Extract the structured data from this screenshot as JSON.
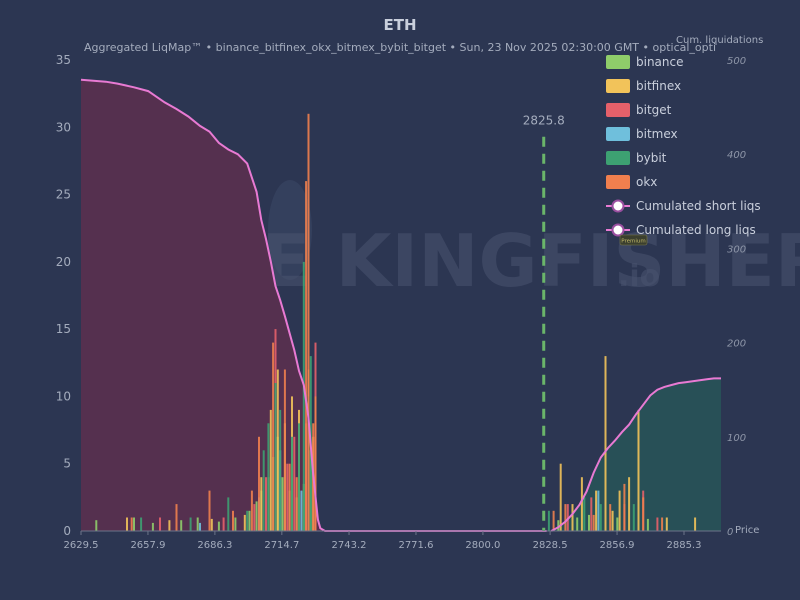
{
  "header": {
    "title": "ETH",
    "subtitle": "Aggregated LiqMap™  •  binance_bitfinex_okx_bitmex_bybit_bitget  •  Sun, 23 Nov 2025 02:30:00 GMT  •  optical_opti"
  },
  "watermark": {
    "brand": "THE KINGFISHER",
    "suffix": ".io"
  },
  "badge": "Premium",
  "colors": {
    "background": "#2c3652",
    "binance": "#8fcd6a",
    "bitfinex": "#f2c35a",
    "bitget": "#e5606a",
    "bitmex": "#6fbfdc",
    "bybit": "#3da172",
    "okx": "#f07f4e",
    "cumulative_line": "#e87ad3",
    "short_fill": "#55304f",
    "long_fill": "#285057",
    "current_price": "#6ab56a"
  },
  "chart_data": {
    "type": "bar",
    "title": "ETH",
    "xlabel": "Price",
    "ylabel": "",
    "y2label": "Cum. liquidations",
    "xlim": [
      2629.5,
      2901
    ],
    "ylim": [
      0,
      35
    ],
    "y2lim": [
      0,
      500
    ],
    "x_ticks": [
      "2629.5",
      "2657.9",
      "2686.3",
      "2714.7",
      "2743.2",
      "2771.6",
      "2800.0",
      "2828.5",
      "2856.9",
      "2885.3"
    ],
    "y_ticks": [
      "0",
      "5",
      "10",
      "15",
      "20",
      "25",
      "30",
      "35"
    ],
    "y2_ticks": [
      "0",
      "100",
      "200",
      "300",
      "400",
      "500"
    ],
    "current_price": {
      "value": 2825.8,
      "label": "2825.8"
    },
    "legend": [
      "binance",
      "bitfinex",
      "bitget",
      "bitmex",
      "bybit",
      "okx",
      "Cumulated short liqs",
      "Cumulated long liqs"
    ],
    "series": [
      {
        "name": "binance",
        "x": [
          2636,
          2652,
          2660,
          2672,
          2679,
          2688,
          2695,
          2701,
          2704,
          2706,
          2709,
          2711,
          2713,
          2715,
          2718,
          2721,
          2724,
          2727,
          2729,
          2832,
          2840,
          2845,
          2857,
          2870
        ],
        "values": [
          0.8,
          1.0,
          0.6,
          0.8,
          1.0,
          0.7,
          1.0,
          1.5,
          2.2,
          3.0,
          4.0,
          5.5,
          7.0,
          4.0,
          3.0,
          2.5,
          3.5,
          6.0,
          8.0,
          0.8,
          1.0,
          1.2,
          1.0,
          0.9
        ]
      },
      {
        "name": "bitfinex",
        "x": [
          2649,
          2667,
          2685,
          2699,
          2706,
          2710,
          2713,
          2716,
          2719,
          2722,
          2726,
          2728,
          2833,
          2838,
          2842,
          2848,
          2852,
          2855,
          2858,
          2862,
          2866,
          2878,
          2890
        ],
        "values": [
          1.0,
          0.8,
          0.9,
          1.2,
          4.0,
          9.0,
          12.0,
          8.0,
          10.0,
          9.0,
          12.0,
          7.0,
          5.0,
          2.0,
          4.0,
          3.0,
          13.0,
          1.5,
          3.0,
          4.0,
          9.0,
          1.0,
          1.0
        ]
      },
      {
        "name": "bitget",
        "x": [
          2663,
          2690,
          2703,
          2708,
          2712,
          2717,
          2720,
          2725,
          2729,
          2836,
          2846,
          2860,
          2868,
          2874
        ],
        "values": [
          1.0,
          1.0,
          2.0,
          4.0,
          15.0,
          5.0,
          7.0,
          8.0,
          14.0,
          2.0,
          2.5,
          2.0,
          3.0,
          1.0
        ]
      },
      {
        "name": "bitmex",
        "x": [
          2680,
          2705,
          2714,
          2723,
          2849
        ],
        "values": [
          0.6,
          2.5,
          6.0,
          3.0,
          3.0
        ]
      },
      {
        "name": "bybit",
        "x": [
          2655,
          2676,
          2692,
          2700,
          2707,
          2709,
          2712,
          2714,
          2719,
          2722,
          2724,
          2726,
          2727,
          2828,
          2843,
          2850,
          2864
        ],
        "values": [
          1.0,
          1.0,
          2.5,
          1.5,
          6.0,
          8.0,
          11.0,
          9.0,
          7.0,
          8.0,
          20.0,
          10.0,
          13.0,
          1.5,
          2.5,
          2.0,
          2.0
        ]
      },
      {
        "name": "okx",
        "x": [
          2651,
          2670,
          2684,
          2694,
          2702,
          2705,
          2711,
          2716,
          2718,
          2721,
          2725,
          2726,
          2728,
          2729,
          2830,
          2835,
          2847,
          2854,
          2860,
          2868,
          2876
        ],
        "values": [
          1.0,
          2.0,
          3.0,
          1.5,
          3.0,
          7.0,
          14.0,
          12.0,
          5.0,
          4.0,
          26.0,
          31.0,
          8.0,
          10.0,
          1.5,
          2.0,
          1.2,
          2.0,
          3.5,
          2.5,
          1.0
        ]
      }
    ],
    "cumulated_short_liqs": {
      "x": [
        2829,
        2832,
        2835,
        2838,
        2841,
        2844,
        2847,
        2850,
        2853,
        2856,
        2859,
        2862,
        2865,
        2868,
        2871,
        2874,
        2877,
        2880,
        2883,
        2886,
        2889,
        2892,
        2895,
        2898,
        2901
      ],
      "values": [
        0,
        4,
        10,
        18,
        28,
        42,
        62,
        78,
        88,
        96,
        105,
        113,
        124,
        134,
        144,
        150,
        153,
        155,
        157,
        158,
        159,
        160,
        161,
        162,
        162
      ]
    },
    "cumulated_long_liqs": {
      "x": [
        2629.5,
        2640,
        2645,
        2652,
        2658,
        2665,
        2670,
        2675,
        2680,
        2684,
        2688,
        2692,
        2696,
        2700,
        2704,
        2706,
        2708,
        2710,
        2712,
        2714,
        2716,
        2718,
        2720,
        2722,
        2724,
        2726,
        2728,
        2730,
        2731,
        2733,
        2827
      ],
      "values": [
        479,
        477,
        475,
        471,
        467,
        455,
        448,
        440,
        430,
        424,
        412,
        405,
        400,
        390,
        360,
        330,
        310,
        286,
        260,
        245,
        228,
        210,
        192,
        170,
        155,
        120,
        60,
        12,
        3,
        0,
        0
      ]
    }
  }
}
